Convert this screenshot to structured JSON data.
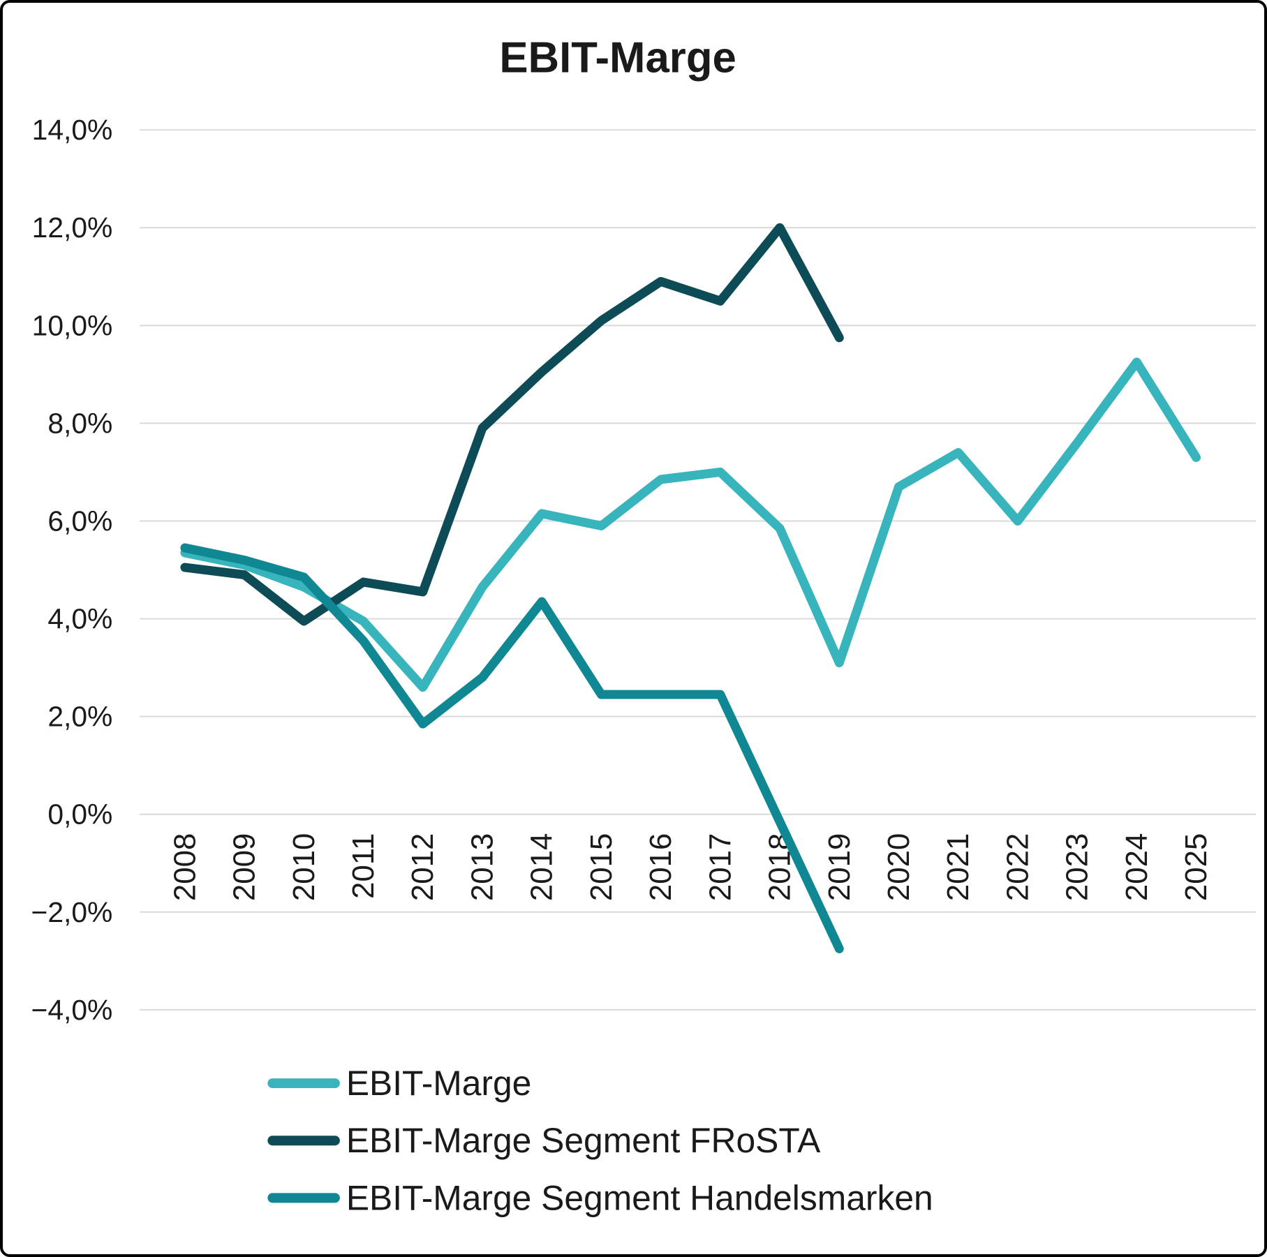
{
  "frame": {
    "background": "#ffffff",
    "border_color": "#000000",
    "gridline_color": "#d9d9d9",
    "text_color": "#1a1a1a"
  },
  "chart_data": {
    "type": "line",
    "title": "EBIT-Marge",
    "xlabel": "",
    "ylabel": "",
    "grid": true,
    "legend_position": "bottom-left",
    "categories": [
      "2008",
      "2009",
      "2010",
      "2011",
      "2012",
      "2013",
      "2014",
      "2015",
      "2016",
      "2017",
      "2018",
      "2019",
      "2020",
      "2021",
      "2022",
      "2023",
      "2024",
      "2025"
    ],
    "y_axis": {
      "min": -4,
      "max": 14,
      "step": 2,
      "tick_labels": [
        "14,0%",
        "12,0%",
        "10,0%",
        "8,0%",
        "6,0%",
        "4,0%",
        "2,0%",
        "0,0%",
        "−2,0%",
        "−4,0%"
      ]
    },
    "series": [
      {
        "name": "EBIT-Marge",
        "color": "#38b4bc",
        "values": [
          5.35,
          5.1,
          4.65,
          3.95,
          2.6,
          4.65,
          6.15,
          5.9,
          6.85,
          7.0,
          5.85,
          3.1,
          6.7,
          7.4,
          6.0,
          7.6,
          9.25,
          7.3
        ]
      },
      {
        "name": "EBIT-Marge Segment FRoSTA",
        "color": "#0d4c56",
        "values": [
          5.05,
          4.9,
          3.95,
          4.75,
          4.55,
          7.9,
          9.05,
          10.1,
          10.9,
          10.5,
          12.0,
          9.75
        ]
      },
      {
        "name": "EBIT-Marge Segment Handelsmarken",
        "color": "#0f8894",
        "values": [
          5.45,
          5.2,
          4.85,
          3.55,
          1.85,
          2.8,
          4.35,
          2.45,
          2.45,
          2.45,
          -0.15,
          -2.75
        ]
      }
    ]
  }
}
